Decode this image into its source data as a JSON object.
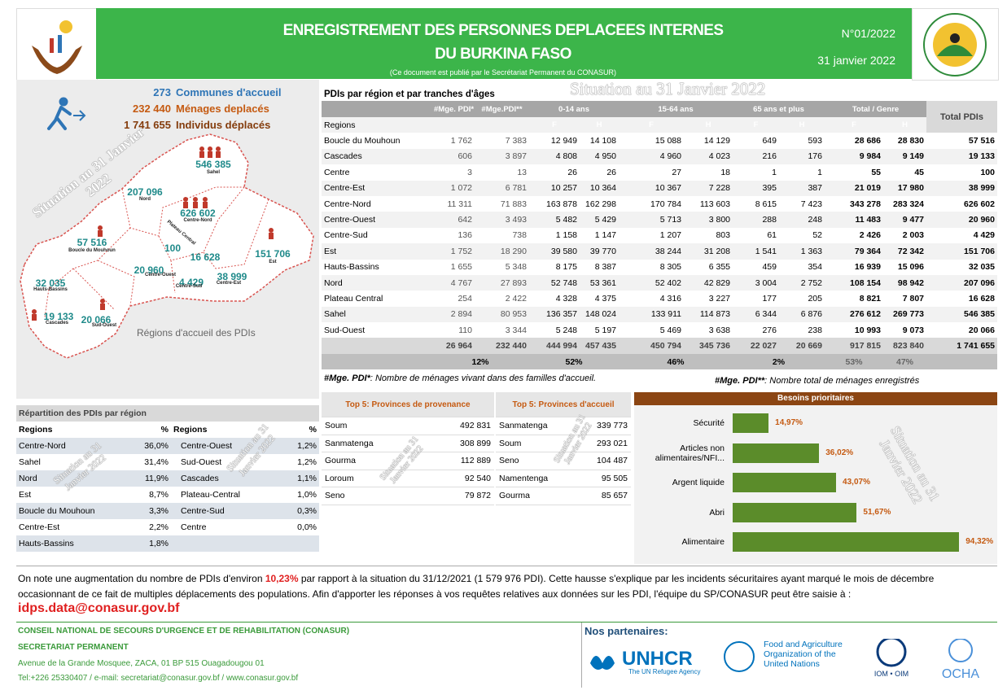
{
  "header": {
    "title_line1": "ENREGISTREMENT DES PERSONNES DEPLACEES INTERNES",
    "title_line2": "DU BURKINA FASO",
    "subtitle": "(Ce document est publié par le Secrétariat Permanent du CONASUR)",
    "number": "N°01/2022",
    "date": "31 janvier 2022"
  },
  "watermark": "Situation au 31 Janvier 2022",
  "summary": [
    {
      "value": "273",
      "label": "Communes d'accueil"
    },
    {
      "value": "232 440",
      "label": "Ménages deplacés"
    },
    {
      "value": "1 741 655",
      "label": "Individus déplacés"
    }
  ],
  "map": {
    "caption": "Régions d'accueil des PDIs",
    "regions": [
      {
        "name": "Sahel",
        "value": "546 385"
      },
      {
        "name": "Nord",
        "value": "207 096"
      },
      {
        "name": "Centre-Nord",
        "value": "626 602"
      },
      {
        "name": "Boucle du Mouhoun",
        "value": "57 516"
      },
      {
        "name": "Plateau Central",
        "value": "16 628"
      },
      {
        "name": "Centre",
        "value": "100"
      },
      {
        "name": "Est",
        "value": "151 706"
      },
      {
        "name": "Centre-Ouest",
        "value": "20 960"
      },
      {
        "name": "Centre-Sud",
        "value": "4 429"
      },
      {
        "name": "Centre-Est",
        "value": "38 999"
      },
      {
        "name": "Hauts-Bassins",
        "value": "32 035"
      },
      {
        "name": "Cascades",
        "value": "19 133"
      },
      {
        "name": "Sud-Ouest",
        "value": "20 066"
      }
    ]
  },
  "pdi_table": {
    "title": "PDIs par région et par tranches d'âges",
    "header": {
      "mge1": "#Mge. PDI*",
      "mge2": "#Mge.PDI**",
      "age_groups": [
        "0-14 ans",
        "15-64 ans",
        "65 ans et plus"
      ],
      "gender_total": "Total / Genre",
      "total": "Total PDIs",
      "regions_label": "Regions",
      "sexes": [
        "F",
        "H",
        "F",
        "H",
        "F",
        "H",
        "F",
        "H"
      ]
    },
    "rows": [
      [
        "Boucle du Mouhoun",
        "1 762",
        "7 383",
        "12 949",
        "14 108",
        "15 088",
        "14 129",
        "649",
        "593",
        "28 686",
        "28 830",
        "57 516"
      ],
      [
        "Cascades",
        "606",
        "3 897",
        "4 808",
        "4 950",
        "4 960",
        "4 023",
        "216",
        "176",
        "9 984",
        "9 149",
        "19 133"
      ],
      [
        "Centre",
        "3",
        "13",
        "26",
        "26",
        "27",
        "18",
        "1",
        "1",
        "55",
        "45",
        "100"
      ],
      [
        "Centre-Est",
        "1 072",
        "6 781",
        "10 257",
        "10 364",
        "10 367",
        "7 228",
        "395",
        "387",
        "21 019",
        "17 980",
        "38 999"
      ],
      [
        "Centre-Nord",
        "11 311",
        "71 883",
        "163 878",
        "162 298",
        "170 784",
        "113 603",
        "8 615",
        "7 423",
        "343 278",
        "283 324",
        "626 602"
      ],
      [
        "Centre-Ouest",
        "642",
        "3 493",
        "5 482",
        "5 429",
        "5 713",
        "3 800",
        "288",
        "248",
        "11 483",
        "9 477",
        "20 960"
      ],
      [
        "Centre-Sud",
        "136",
        "738",
        "1 158",
        "1 147",
        "1 207",
        "803",
        "61",
        "52",
        "2 426",
        "2 003",
        "4 429"
      ],
      [
        "Est",
        "1 752",
        "18 290",
        "39 580",
        "39 770",
        "38 244",
        "31 208",
        "1 541",
        "1 363",
        "79 364",
        "72 342",
        "151 706"
      ],
      [
        "Hauts-Bassins",
        "1 655",
        "5 348",
        "8 175",
        "8 387",
        "8 305",
        "6 355",
        "459",
        "354",
        "16 939",
        "15 096",
        "32 035"
      ],
      [
        "Nord",
        "4 767",
        "27 893",
        "52 748",
        "53 361",
        "52 402",
        "42 829",
        "3 004",
        "2 752",
        "108 154",
        "98 942",
        "207 096"
      ],
      [
        "Plateau Central",
        "254",
        "2 422",
        "4 328",
        "4 375",
        "4 316",
        "3 227",
        "177",
        "205",
        "8 821",
        "7 807",
        "16 628"
      ],
      [
        "Sahel",
        "2 894",
        "80 953",
        "136 357",
        "148 024",
        "133 911",
        "114 873",
        "6 344",
        "6 876",
        "276 612",
        "269 773",
        "546 385"
      ],
      [
        "Sud-Ouest",
        "110",
        "3 344",
        "5 248",
        "5 197",
        "5 469",
        "3 638",
        "276",
        "238",
        "10 993",
        "9 073",
        "20 066"
      ]
    ],
    "totals": [
      "26 964",
      "232 440",
      "444 994",
      "457 435",
      "450 794",
      "345 736",
      "22 027",
      "20 669",
      "917 815",
      "823 840",
      "1 741 655"
    ],
    "percentages": [
      "12%",
      "52%",
      "46%",
      "2%",
      "53%",
      "47%"
    ]
  },
  "notes": [
    {
      "term": "#Mge. PDI*",
      "text": ": Nombre de ménages vivant dans des familles d'accueil."
    },
    {
      "term": "#Mge. PDI**",
      "text": ": Nombre total de ménages enregistrés"
    }
  ],
  "distribution": {
    "title": "Répartition des PDIs par région",
    "headers": [
      "Regions",
      "%",
      "Regions",
      "%"
    ],
    "left": [
      [
        "Centre-Nord",
        "36,0%"
      ],
      [
        "Sahel",
        "31,4%"
      ],
      [
        "Nord",
        "11,9%"
      ],
      [
        "Est",
        "8,7%"
      ],
      [
        "Boucle du Mouhoun",
        "3,3%"
      ],
      [
        "Centre-Est",
        "2,2%"
      ],
      [
        "Hauts-Bassins",
        "1,8%"
      ]
    ],
    "right": [
      [
        "Centre-Ouest",
        "1,2%"
      ],
      [
        "Sud-Ouest",
        "1,2%"
      ],
      [
        "Cascades",
        "1,1%"
      ],
      [
        "Plateau-Central",
        "1,0%"
      ],
      [
        "Centre-Sud",
        "0,3%"
      ],
      [
        "Centre",
        "0,0%"
      ]
    ]
  },
  "top5": [
    {
      "title": "Top 5:  Provinces de provenance",
      "rows": [
        [
          "Soum",
          "492 831"
        ],
        [
          "Sanmatenga",
          "308 899"
        ],
        [
          "Gourma",
          "112 889"
        ],
        [
          "Loroum",
          "92 540"
        ],
        [
          "Seno",
          "79 872"
        ]
      ]
    },
    {
      "title": "Top 5:  Provinces d'accueil",
      "rows": [
        [
          "Sanmatenga",
          "339 773"
        ],
        [
          "Soum",
          "293 021"
        ],
        [
          "Seno",
          "104 487"
        ],
        [
          "Namentenga",
          "95 505"
        ],
        [
          "Gourma",
          "85 657"
        ]
      ]
    }
  ],
  "chart_data": {
    "type": "bar",
    "orientation": "horizontal",
    "title": "Besoins prioritaires",
    "categories": [
      "Sécurité",
      "Articles non alimentaires/NFI...",
      "Argent liquide",
      "Abri",
      "Alimentaire"
    ],
    "values": [
      14.97,
      36.02,
      43.07,
      51.67,
      94.32
    ],
    "value_labels": [
      "14,97%",
      "36,02%",
      "43,07%",
      "51,67%",
      "94,32%"
    ],
    "color": "#5b8c2a",
    "xlim": [
      0,
      100
    ]
  },
  "message": {
    "before": "On note une augmentation du nombre de PDIs d'environ ",
    "highlight": "10,23%",
    "after": " par rapport à la situation du 31/12/2021 (1 579 976 PDI). Cette hausse s'explique par les incidents sécuritaires ayant marqué le mois de décembre occasionnant de ce fait de multiples déplacements des populations. Afin d'apporter les réponses à vos requêtes relatives aux données sur les PDI, l'équipe du SP/CONASUR peut être saisie à :",
    "email": "idps.data@conasur.gov.bf"
  },
  "footer": {
    "org": "CONSEIL NATIONAL DE  SECOURS D'URGENCE ET DE REHABILITATION (CONASUR)",
    "secretariat": "SECRETARIAT PERMANENT",
    "address": "Avenue de la Grande Mosquee, ZACA, 01 BP 515 Ouagadougou 01",
    "contact": "Tel:+226 25330407 / e-mail: secretariat@conasur.gov.bf / www.conasur.gov.bf",
    "partners_label": "Nos partenaires:",
    "unhcr": "UNHCR",
    "unhcr_tagline": "The UN Refugee Agency",
    "fao": [
      "Food and Agriculture",
      "Organization of the",
      "United Nations"
    ],
    "iom": "IOM • OIM",
    "ocha": "OCHA"
  }
}
